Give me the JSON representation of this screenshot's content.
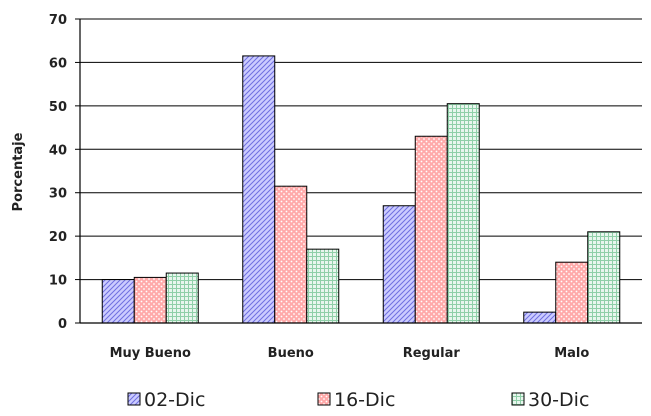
{
  "chart_data": {
    "type": "bar",
    "title": "",
    "xlabel": "",
    "ylabel": "Porcentaje",
    "categories": [
      "Muy Bueno",
      "Bueno",
      "Regular",
      "Malo"
    ],
    "ylim": [
      0,
      70
    ],
    "yticks": [
      0,
      10,
      20,
      30,
      40,
      50,
      60,
      70
    ],
    "grid": true,
    "legend_position": "bottom",
    "series": [
      {
        "name": "02-Dic",
        "values": [
          10,
          61.5,
          27,
          2.5
        ],
        "color": "#ccccff",
        "pattern": "diagonal-hatch"
      },
      {
        "name": "16-Dic",
        "values": [
          10.5,
          31.5,
          43,
          14
        ],
        "color": "#ff9999",
        "pattern": "dots"
      },
      {
        "name": "30-Dic",
        "values": [
          11.5,
          17,
          50.5,
          21
        ],
        "color": "#ccffcc",
        "pattern": "grid"
      }
    ]
  }
}
